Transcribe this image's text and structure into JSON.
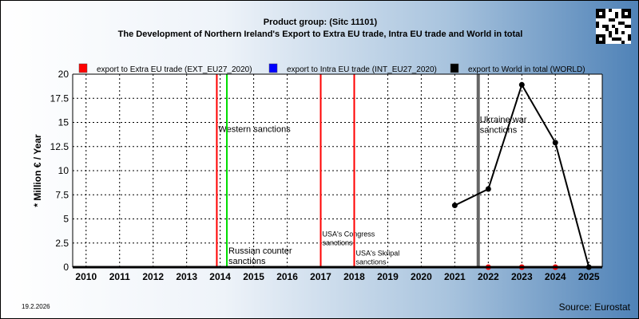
{
  "header": {
    "title_line1": "Product group:  (Sitc 11101)",
    "title_line2": "The Development of Northern Ireland's Export to Extra EU trade, Intra EU trade and World in total"
  },
  "footer": {
    "date": "19.2.2026",
    "source": "Source: Eurostat"
  },
  "qr_code": {
    "icon": "qr-code-icon"
  },
  "chart_data": {
    "type": "line",
    "title": "The Development of Northern Ireland's Export to Extra EU trade, Intra EU trade and World in total",
    "subtitle": "Product group:  (Sitc 11101)",
    "xlabel": "",
    "ylabel": "* Million € / Year",
    "ylim": [
      0,
      20
    ],
    "yticks": [
      "0",
      "2.5",
      "5",
      "7.5",
      "10",
      "12.5",
      "15",
      "17.5",
      "20"
    ],
    "ytick_values": [
      0,
      2.5,
      5,
      7.5,
      10,
      12.5,
      15,
      17.5,
      20
    ],
    "xticks": [
      "2010",
      "2011",
      "2012",
      "2013",
      "2014",
      "2015",
      "2016",
      "2017",
      "2018",
      "2019",
      "2020",
      "2021",
      "2022",
      "2023",
      "2024",
      "2025"
    ],
    "xlim": [
      2009.6,
      2025.4
    ],
    "grid": true,
    "legend_placement": "top",
    "series": [
      {
        "name": "export to Extra EU trade (EXT_EU27_2020)",
        "color": "#ff0000",
        "x": [
          2022,
          2023,
          2024
        ],
        "values": [
          0,
          0,
          0
        ]
      },
      {
        "name": "export to Intra EU trade (INT_EU27_2020)",
        "color": "#0000ff",
        "x": [],
        "values": []
      },
      {
        "name": "export to World in total (WORLD)",
        "color": "#000000",
        "x": [
          2021,
          2022,
          2023,
          2024,
          2025
        ],
        "values": [
          6.4,
          8.1,
          18.9,
          12.9,
          0
        ]
      }
    ],
    "events": [
      {
        "x": 2013.9,
        "color": "#ff0000",
        "label": "Western sanctions",
        "label_y": 14.0,
        "size": "normal"
      },
      {
        "x": 2014.2,
        "color": "#00dd00",
        "label": "Russian counter sanctions",
        "label_y": 1.4,
        "size": "normal"
      },
      {
        "x": 2017.0,
        "color": "#ff0000",
        "label": "USA's Congress sanctions",
        "label_y": 3.2,
        "size": "small"
      },
      {
        "x": 2018.0,
        "color": "#ff0000",
        "label": "USA's Skripal sanctions",
        "label_y": 1.2,
        "size": "small"
      },
      {
        "x": 2021.7,
        "color": "#666666",
        "label": "Ukraine war sanctions",
        "label_y": 15.0,
        "size": "normal"
      }
    ]
  }
}
